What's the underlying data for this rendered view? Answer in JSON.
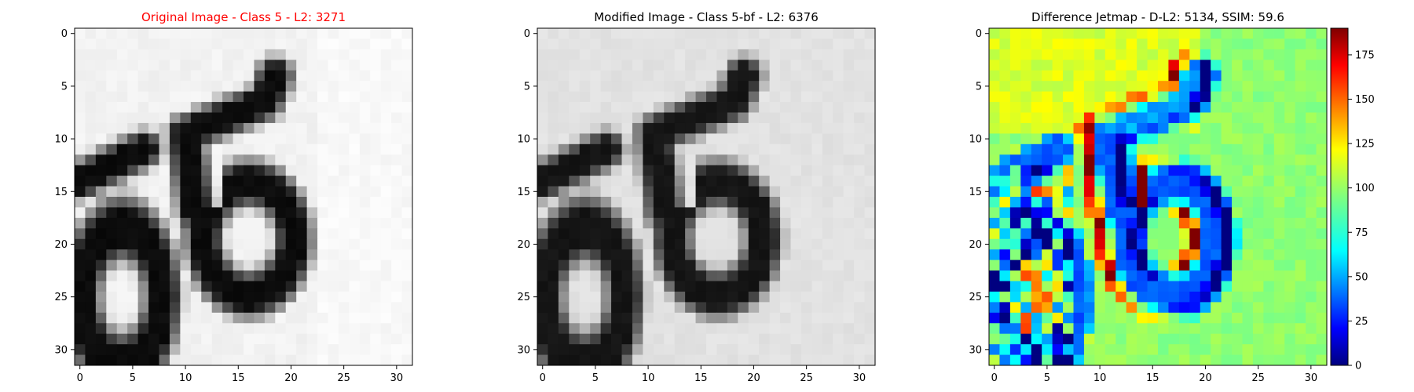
{
  "figure": {
    "title_color_alert": "#ff0000",
    "title_color_default": "#000000"
  },
  "chart_data": [
    {
      "type": "heatmap",
      "title": "Original Image - Class 5 - L2: 3271",
      "title_color": "#ff0000",
      "colormap": "gray",
      "resolution": [
        32,
        32
      ],
      "x_ticks": [
        "0",
        "5",
        "10",
        "15",
        "20",
        "25",
        "30"
      ],
      "y_ticks": [
        "0",
        "5",
        "10",
        "15",
        "20",
        "25",
        "30"
      ],
      "xlim": [
        -0.5,
        31.5
      ],
      "ylim": [
        31.5,
        -0.5
      ],
      "content": "grayscale digits: a '5' on the right and an '0'-like loop with a stroke on the left"
    },
    {
      "type": "heatmap",
      "title": "Modified Image - Class 5-bf - L2: 6376",
      "title_color": "#000000",
      "colormap": "gray",
      "resolution": [
        32,
        32
      ],
      "x_ticks": [
        "0",
        "5",
        "10",
        "15",
        "20",
        "25",
        "30"
      ],
      "y_ticks": [
        "0",
        "5",
        "10",
        "15",
        "20",
        "25",
        "30"
      ],
      "xlim": [
        -0.5,
        31.5
      ],
      "ylim": [
        31.5,
        -0.5
      ]
    },
    {
      "type": "heatmap",
      "title": "Difference Jetmap - D-L2: 5134, SSIM: 59.6",
      "title_color": "#000000",
      "colormap": "jet",
      "resolution": [
        32,
        32
      ],
      "x_ticks": [
        "0",
        "5",
        "10",
        "15",
        "20",
        "25",
        "30"
      ],
      "y_ticks": [
        "0",
        "5",
        "10",
        "15",
        "20",
        "25",
        "30"
      ],
      "xlim": [
        -0.5,
        31.5
      ],
      "ylim": [
        31.5,
        -0.5
      ],
      "colorbar": {
        "ticks": [
          "0",
          "25",
          "50",
          "75",
          "100",
          "125",
          "150",
          "175"
        ],
        "range": [
          0,
          190
        ]
      }
    }
  ]
}
